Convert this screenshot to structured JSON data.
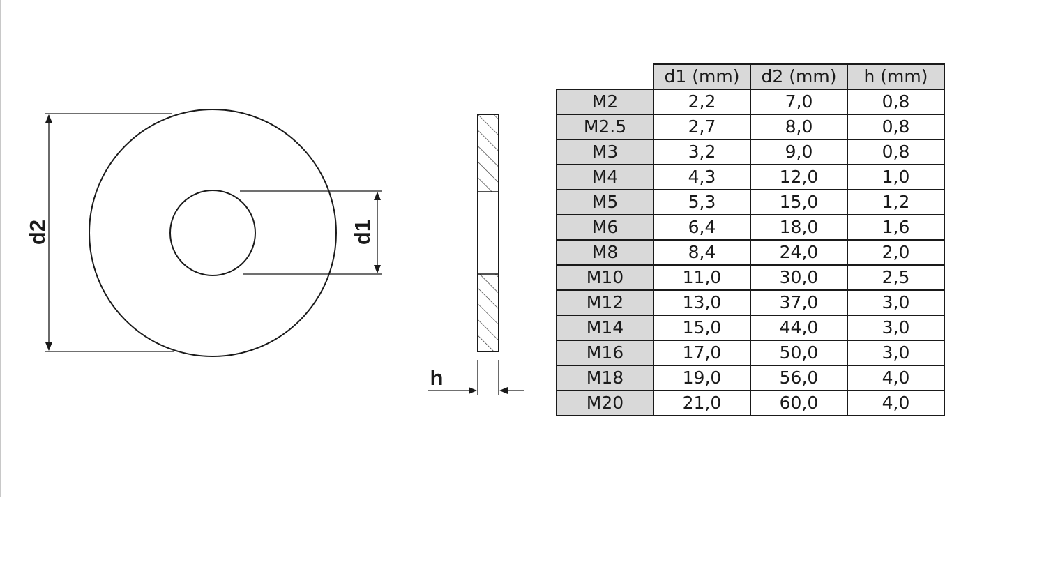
{
  "drawing": {
    "label_d2": "d2",
    "label_d1": "d1",
    "label_h": "h"
  },
  "table": {
    "headers": [
      "d1 (mm)",
      "d2 (mm)",
      "h (mm)"
    ],
    "rows": [
      {
        "size": "M2",
        "d1": "2,2",
        "d2": "7,0",
        "h": "0,8"
      },
      {
        "size": "M2.5",
        "d1": "2,7",
        "d2": "8,0",
        "h": "0,8"
      },
      {
        "size": "M3",
        "d1": "3,2",
        "d2": "9,0",
        "h": "0,8"
      },
      {
        "size": "M4",
        "d1": "4,3",
        "d2": "12,0",
        "h": "1,0"
      },
      {
        "size": "M5",
        "d1": "5,3",
        "d2": "15,0",
        "h": "1,2"
      },
      {
        "size": "M6",
        "d1": "6,4",
        "d2": "18,0",
        "h": "1,6"
      },
      {
        "size": "M8",
        "d1": "8,4",
        "d2": "24,0",
        "h": "2,0"
      },
      {
        "size": "M10",
        "d1": "11,0",
        "d2": "30,0",
        "h": "2,5"
      },
      {
        "size": "M12",
        "d1": "13,0",
        "d2": "37,0",
        "h": "3,0"
      },
      {
        "size": "M14",
        "d1": "15,0",
        "d2": "44,0",
        "h": "3,0"
      },
      {
        "size": "M16",
        "d1": "17,0",
        "d2": "50,0",
        "h": "3,0"
      },
      {
        "size": "M18",
        "d1": "19,0",
        "d2": "56,0",
        "h": "4,0"
      },
      {
        "size": "M20",
        "d1": "21,0",
        "d2": "60,0",
        "h": "4,0"
      }
    ]
  }
}
